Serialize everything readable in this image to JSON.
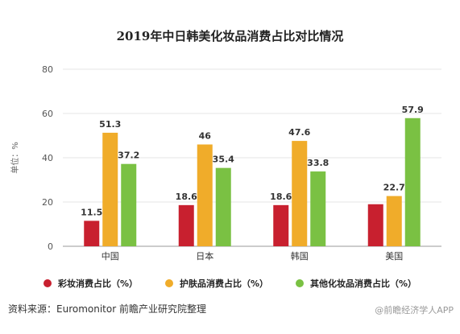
{
  "chart_data": {
    "type": "bar",
    "title": "2019年中日韩美化妆品消费占比对比情况",
    "ylabel": "单位：%",
    "ylim": [
      0,
      80
    ],
    "yticks": [
      0,
      20,
      40,
      60,
      80
    ],
    "grid": true,
    "legend_placement": "bottom",
    "categories": [
      "中国",
      "日本",
      "韩国",
      "美国"
    ],
    "series": [
      {
        "name": "彩妆消费占比（%）",
        "color": "#c8202f",
        "values": [
          11.5,
          18.6,
          18.6,
          19.0
        ],
        "labels": [
          "11.5",
          "18.6",
          "18.6",
          ""
        ]
      },
      {
        "name": "护肤品消费占比（%）",
        "color": "#f0ac2a",
        "values": [
          51.3,
          46,
          47.6,
          22.7
        ],
        "labels": [
          "51.3",
          "46",
          "47.6",
          "22.7"
        ]
      },
      {
        "name": "其他化妆品消费占比（%）",
        "color": "#7ac143",
        "values": [
          37.2,
          35.4,
          33.8,
          57.9
        ],
        "labels": [
          "37.2",
          "35.4",
          "33.8",
          "57.9"
        ]
      }
    ]
  },
  "source_text": "资料来源：Euromonitor 前瞻产业研究院整理",
  "credit_text": "@前瞻经济学人APP"
}
